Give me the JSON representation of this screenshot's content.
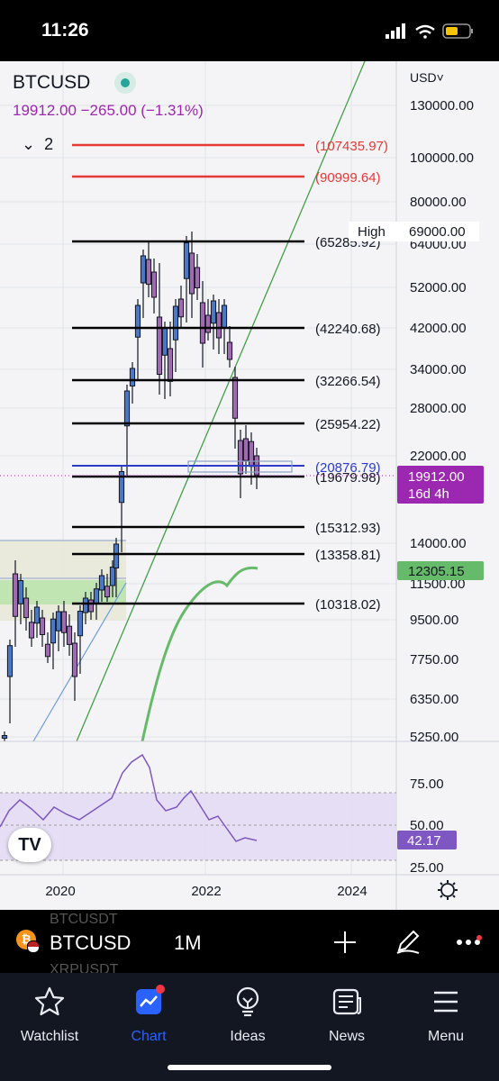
{
  "status_bar": {
    "time": "11:26"
  },
  "chart_header": {
    "symbol": "BTCUSD",
    "quote": "19912.00  −265.00 (−1.31%)",
    "collapse_count": "2",
    "currency": "USD"
  },
  "colors": {
    "accent": "#2962ff",
    "bull": "#1565c0",
    "bear": "#9c27b0",
    "red_level": "#e53935",
    "rsi": "#7e57c2",
    "trend": "#43a047"
  },
  "chart_data": {
    "type": "candlestick",
    "interval": "1M",
    "y_scale": "log",
    "y_tick_labels": [
      "130000.00",
      "100000.00",
      "80000.00",
      "64000.00",
      "52000.00",
      "42000.00",
      "34000.00",
      "28000.00",
      "22000.00",
      "14000.00",
      "11500.00",
      "9500.00",
      "7750.00",
      "6350.00",
      "5250.00"
    ],
    "x_tick_labels": [
      "2020",
      "2022",
      "2024"
    ],
    "high_label": {
      "label": "High",
      "value": "69000.00"
    },
    "price_tag": {
      "value": "19912.00",
      "countdown": "16d 4h"
    },
    "ma_tag": "12305.15",
    "levels_red": [
      {
        "label": "(107435.97)"
      },
      {
        "label": "(90999.64)"
      }
    ],
    "levels_black": [
      {
        "label": "(65285.92)"
      },
      {
        "label": "(42240.68)"
      },
      {
        "label": "(32266.54)"
      },
      {
        "label": "(25954.22)"
      },
      {
        "label": "(19679.98)"
      },
      {
        "label": "(15312.93)"
      },
      {
        "label": "(13358.81)"
      },
      {
        "label": "(10318.02)"
      }
    ],
    "level_blue": {
      "label": "(20876.79)"
    },
    "rsi": {
      "tick_labels": [
        "75.00",
        "50.00",
        "25.00"
      ],
      "current": "42.17"
    }
  },
  "toolbar": {
    "symbol": "BTCUSD",
    "interval": "1M",
    "ghost_prev": "BTCUSDT",
    "ghost_next": "XRPUSDT"
  },
  "nav": {
    "items": [
      {
        "label": "Watchlist",
        "icon": "star-icon"
      },
      {
        "label": "Chart",
        "icon": "chart-icon"
      },
      {
        "label": "Ideas",
        "icon": "lightbulb-icon"
      },
      {
        "label": "News",
        "icon": "news-icon"
      },
      {
        "label": "Menu",
        "icon": "menu-icon"
      }
    ]
  }
}
